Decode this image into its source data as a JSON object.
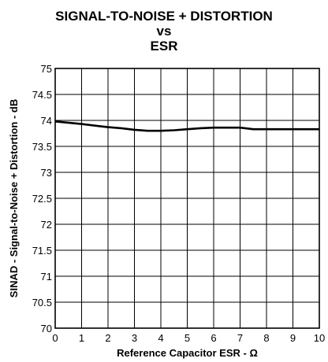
{
  "chart_data": {
    "type": "line",
    "title_lines": [
      "SIGNAL-TO-NOISE + DISTORTION",
      "vs",
      "ESR"
    ],
    "xlabel": "Reference Capacitor ESR - Ω",
    "ylabel": "SINAD - Signal-to-Noise + Distortion - dB",
    "xlim": [
      0,
      10
    ],
    "ylim": [
      70,
      75
    ],
    "x_ticks": [
      0,
      1,
      2,
      3,
      4,
      5,
      6,
      7,
      8,
      9,
      10
    ],
    "y_ticks": [
      70,
      70.5,
      71,
      71.5,
      72,
      72.5,
      73,
      73.5,
      74,
      74.5,
      75
    ],
    "grid": true,
    "series": [
      {
        "x": [
          0,
          1,
          2,
          2.5,
          3,
          3.5,
          4,
          4.5,
          5,
          5.5,
          6,
          6.5,
          7,
          7.5,
          8,
          9,
          10
        ],
        "y": [
          73.98,
          73.93,
          73.87,
          73.85,
          73.82,
          73.8,
          73.8,
          73.81,
          73.83,
          73.85,
          73.86,
          73.86,
          73.86,
          73.83,
          73.83,
          73.83,
          73.83
        ]
      }
    ]
  }
}
